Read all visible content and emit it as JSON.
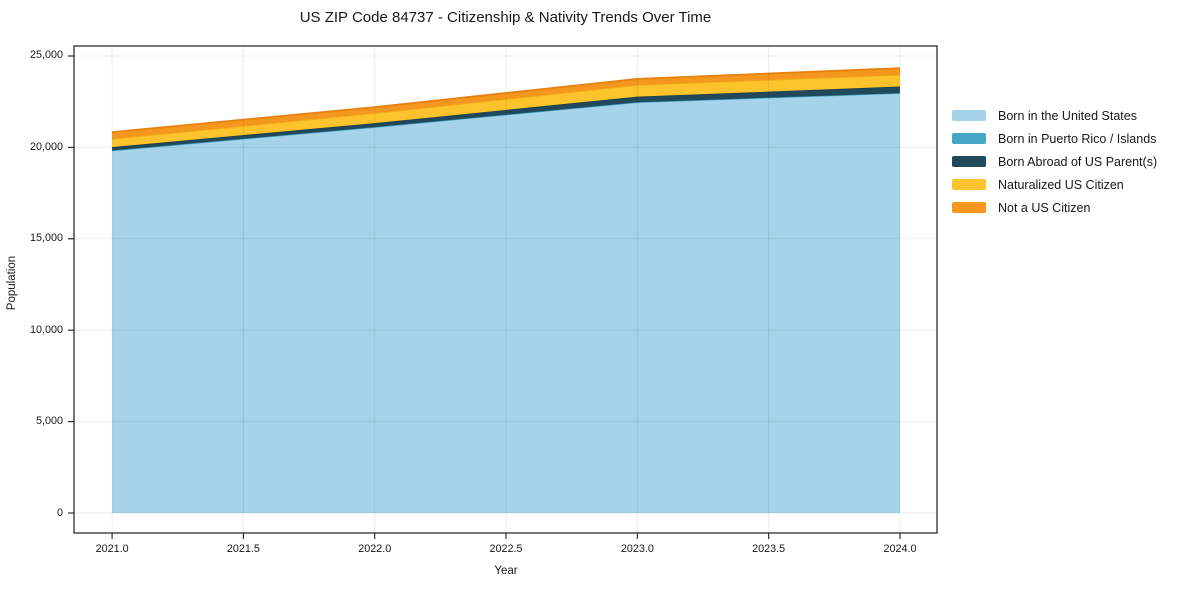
{
  "title": "US ZIP Code 84737 - Citizenship & Nativity Trends Over Time",
  "chart_data": {
    "type": "area",
    "stacked": true,
    "title": "US ZIP Code 84737 - Citizenship & Nativity Trends Over Time",
    "xlabel": "Year",
    "ylabel": "Population",
    "x": [
      2021,
      2022,
      2023,
      2024
    ],
    "series": [
      {
        "name": "Born in the United States",
        "color": "#a4d3ea",
        "edge": "#8fc3dc",
        "values": [
          19820,
          21100,
          22460,
          22960
        ]
      },
      {
        "name": "Born in Puerto Rico / Islands",
        "color": "#45a6c6",
        "edge": "#3999ba",
        "values": [
          10,
          10,
          10,
          10
        ]
      },
      {
        "name": "Born Abroad of US Parent(s)",
        "color": "#20495c",
        "edge": "#1b3e4e",
        "values": [
          185,
          220,
          305,
          360
        ]
      },
      {
        "name": "Naturalized US Citizen",
        "color": "#fcc32d",
        "edge": "#edb218",
        "values": [
          455,
          545,
          640,
          640
        ]
      },
      {
        "name": "Not a US Citizen",
        "color": "#f5961f",
        "edge": "#e8820d",
        "values": [
          365,
          330,
          330,
          365
        ]
      }
    ],
    "totals": [
      20835,
      22205,
      23745,
      24335
    ],
    "xlim": [
      2020.855,
      2024.141
    ],
    "ylim": [
      -1094,
      25547
    ],
    "x_ticks": [
      2021.0,
      2021.5,
      2022.0,
      2022.5,
      2023.0,
      2023.5,
      2024.0
    ],
    "x_tick_labels": [
      "2021.0",
      "2021.5",
      "2022.0",
      "2022.5",
      "2023.0",
      "2023.5",
      "2024.0"
    ],
    "y_ticks": [
      0,
      5000,
      10000,
      15000,
      20000,
      25000
    ],
    "y_tick_labels": [
      "0",
      "5,000",
      "10,000",
      "15,000",
      "20,000",
      "25,000"
    ],
    "grid": true,
    "legend_position": "right"
  },
  "colors": {
    "background": "#ffffff",
    "spine": "#1d1d1d",
    "grid": "rgba(0,0,0,0.07)",
    "tick": "#1d1d1d",
    "text": "#181818"
  }
}
